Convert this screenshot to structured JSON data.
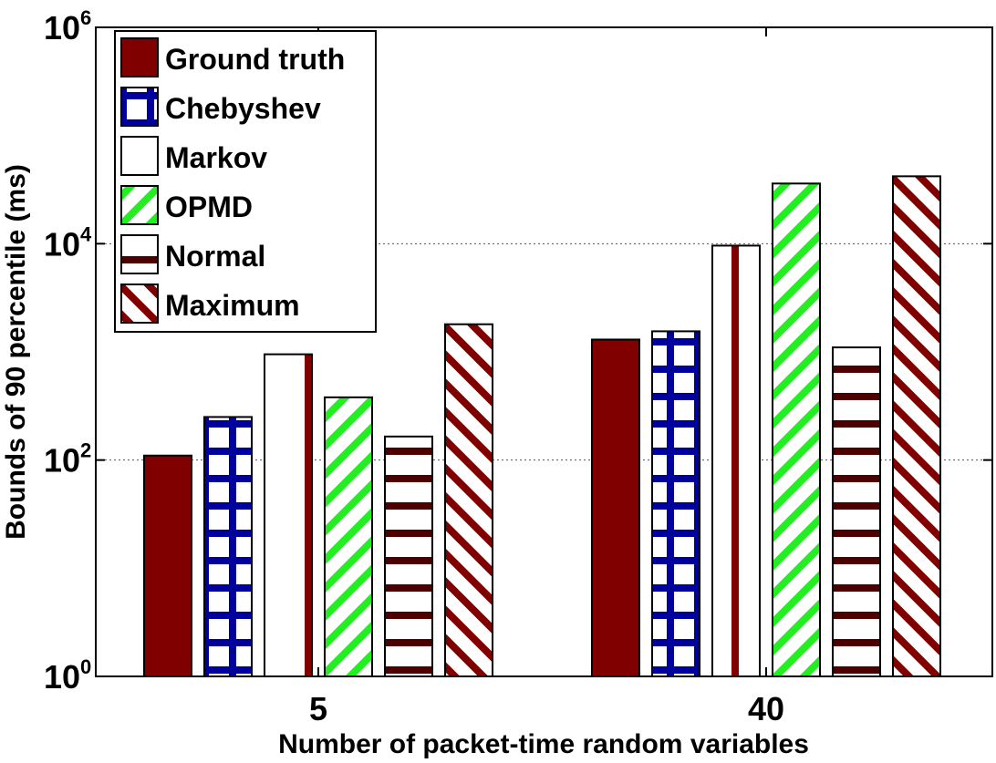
{
  "chart_data": {
    "type": "bar",
    "yscale": "log",
    "ylim": [
      1,
      1000000
    ],
    "categories": [
      "5",
      "40"
    ],
    "xlabel": "Number of packet-time random variables",
    "ylabel": "Bounds of 90 percentile (ms)",
    "yticks": [
      {
        "value": 1,
        "base": "10",
        "exp": "0"
      },
      {
        "value": 100,
        "base": "10",
        "exp": "2"
      },
      {
        "value": 10000,
        "base": "10",
        "exp": "4"
      },
      {
        "value": 1000000,
        "base": "10",
        "exp": "6"
      }
    ],
    "grid": "horizontal dotted at major ticks",
    "legend_position": "top-left",
    "series": [
      {
        "name": "Ground truth",
        "values": [
          110,
          1300
        ],
        "color": "#800000",
        "pattern": "solid"
      },
      {
        "name": "Chebyshev",
        "values": [
          250,
          1550
        ],
        "color": "#00009c",
        "pattern": "grid"
      },
      {
        "name": "Markov",
        "values": [
          950,
          9600
        ],
        "color": "#800000",
        "pattern": "vertical"
      },
      {
        "name": "OPMD",
        "values": [
          380,
          36000
        ],
        "color": "#22ee22",
        "pattern": "diagonal"
      },
      {
        "name": "Normal",
        "values": [
          165,
          1100
        ],
        "color": "#4d0000",
        "pattern": "horizontal"
      },
      {
        "name": "Maximum",
        "values": [
          1800,
          42000
        ],
        "color": "#800000",
        "pattern": "backdiagonal"
      }
    ]
  }
}
